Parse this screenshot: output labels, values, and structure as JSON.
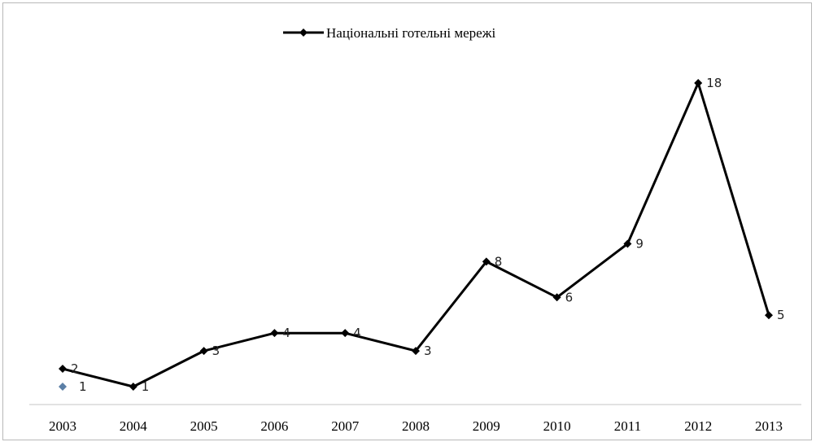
{
  "chart_data": {
    "type": "line",
    "title": "",
    "xlabel": "",
    "ylabel": "",
    "ylim": [
      0,
      19
    ],
    "grid": false,
    "legend_position": "top",
    "categories": [
      "2003",
      "2004",
      "2005",
      "2006",
      "2007",
      "2008",
      "2009",
      "2010",
      "2011",
      "2012",
      "2013"
    ],
    "series": [
      {
        "name": "Національні готельні мережі",
        "color": "#000000",
        "marker": "diamond",
        "values": [
          2,
          1,
          3,
          4,
          4,
          3,
          8,
          6,
          9,
          18,
          5
        ],
        "labels": [
          "2",
          "1",
          "3",
          "4",
          "4",
          "3",
          "8",
          "6",
          "9",
          "18",
          "5"
        ]
      }
    ],
    "extra_points": [
      {
        "x": "2003",
        "y": 1,
        "label": "1",
        "color": "#5b7fa6",
        "marker": "diamond"
      }
    ]
  }
}
